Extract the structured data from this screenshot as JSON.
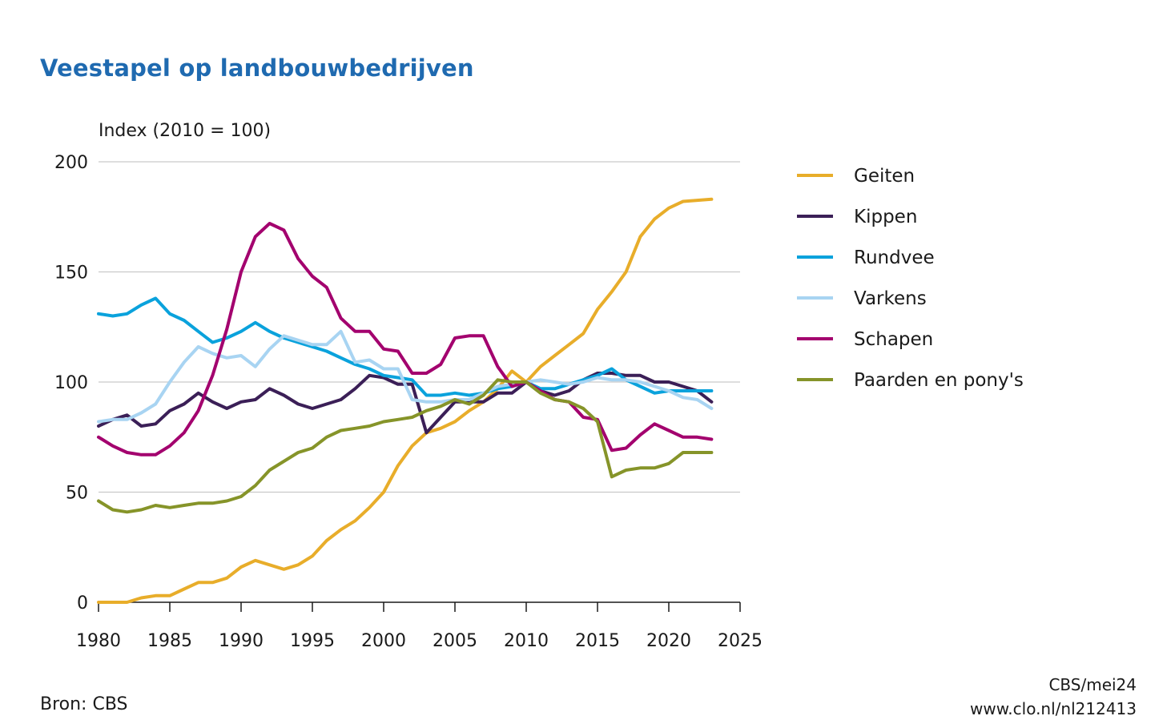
{
  "chart_data": {
    "type": "line",
    "title": "Veestapel op landbouwbedrijven",
    "ylabel": "Index (2010 = 100)",
    "xlabel": "",
    "xlim": [
      1980,
      2025
    ],
    "ylim": [
      0,
      200
    ],
    "xticks": [
      1980,
      1985,
      1990,
      1995,
      2000,
      2005,
      2010,
      2015,
      2020,
      2025
    ],
    "yticks": [
      0,
      50,
      100,
      150,
      200
    ],
    "grid": "horizontal",
    "legend_position": "right",
    "x": [
      1980,
      1981,
      1982,
      1983,
      1984,
      1985,
      1986,
      1987,
      1988,
      1989,
      1990,
      1991,
      1992,
      1993,
      1994,
      1995,
      1996,
      1997,
      1998,
      1999,
      2000,
      2001,
      2002,
      2003,
      2004,
      2005,
      2006,
      2007,
      2008,
      2009,
      2010,
      2011,
      2012,
      2013,
      2014,
      2015,
      2016,
      2017,
      2018,
      2019,
      2020,
      2021,
      2022,
      2023
    ],
    "series": [
      {
        "name": "Geiten",
        "color": "#e8ad2a",
        "values": [
          0,
          0,
          0,
          2,
          3,
          3,
          6,
          9,
          9,
          11,
          16,
          19,
          17,
          15,
          17,
          21,
          28,
          33,
          37,
          43,
          50,
          62,
          71,
          77,
          79,
          82,
          87,
          91,
          97,
          105,
          100,
          107,
          112,
          117,
          122,
          133,
          141,
          150,
          166,
          174,
          179,
          182,
          182.5,
          183
        ]
      },
      {
        "name": "Kippen",
        "color": "#3b1f57",
        "values": [
          80,
          83,
          85,
          80,
          81,
          87,
          90,
          95,
          91,
          88,
          91,
          92,
          97,
          94,
          90,
          88,
          90,
          92,
          97,
          103,
          102,
          99,
          99,
          77,
          84,
          91,
          91,
          91,
          95,
          95,
          100,
          96,
          94,
          96,
          101,
          104,
          104,
          103,
          103,
          100,
          100,
          98,
          96,
          91
        ]
      },
      {
        "name": "Rundvee",
        "color": "#0aa2dc",
        "values": [
          131,
          130,
          131,
          135,
          138,
          131,
          128,
          123,
          118,
          120,
          123,
          127,
          123,
          120,
          118,
          116,
          114,
          111,
          108,
          106,
          103,
          102,
          101,
          94,
          94,
          95,
          94,
          95,
          97,
          98,
          100,
          97,
          97,
          99,
          101,
          103,
          106,
          101,
          98,
          95,
          96,
          96,
          96,
          96
        ]
      },
      {
        "name": "Varkens",
        "color": "#a8d4f2",
        "values": [
          82,
          83,
          83,
          86,
          90,
          100,
          109,
          116,
          113,
          111,
          112,
          107,
          115,
          121,
          119,
          117,
          117,
          123,
          109,
          110,
          106,
          106,
          92,
          91,
          91,
          92,
          92,
          95,
          98,
          99,
          100,
          101,
          100,
          99,
          100,
          102,
          101,
          101,
          100,
          98,
          96,
          93,
          92,
          88
        ]
      },
      {
        "name": "Schapen",
        "color": "#a3006e",
        "values": [
          75,
          71,
          68,
          67,
          67,
          71,
          77,
          87,
          103,
          124,
          150,
          166,
          172,
          169,
          156,
          148,
          143,
          129,
          123,
          123,
          115,
          114,
          104,
          104,
          108,
          120,
          121,
          121,
          107,
          98,
          100,
          96,
          92,
          91,
          84,
          83,
          69,
          70,
          76,
          81,
          78,
          75,
          75,
          74
        ]
      },
      {
        "name": "Paarden en pony's",
        "color": "#869429",
        "values": [
          46,
          42,
          41,
          42,
          44,
          43,
          44,
          45,
          45,
          46,
          48,
          53,
          60,
          64,
          68,
          70,
          75,
          78,
          79,
          80,
          82,
          83,
          84,
          87,
          89,
          92,
          90,
          94,
          101,
          100,
          100,
          95,
          92,
          91,
          88,
          82,
          57,
          60,
          61,
          61,
          63,
          68,
          68,
          68
        ]
      }
    ]
  },
  "source": "Bron: CBS",
  "credit_line1": "CBS/mei24",
  "credit_line2": "www.clo.nl/nl212413"
}
